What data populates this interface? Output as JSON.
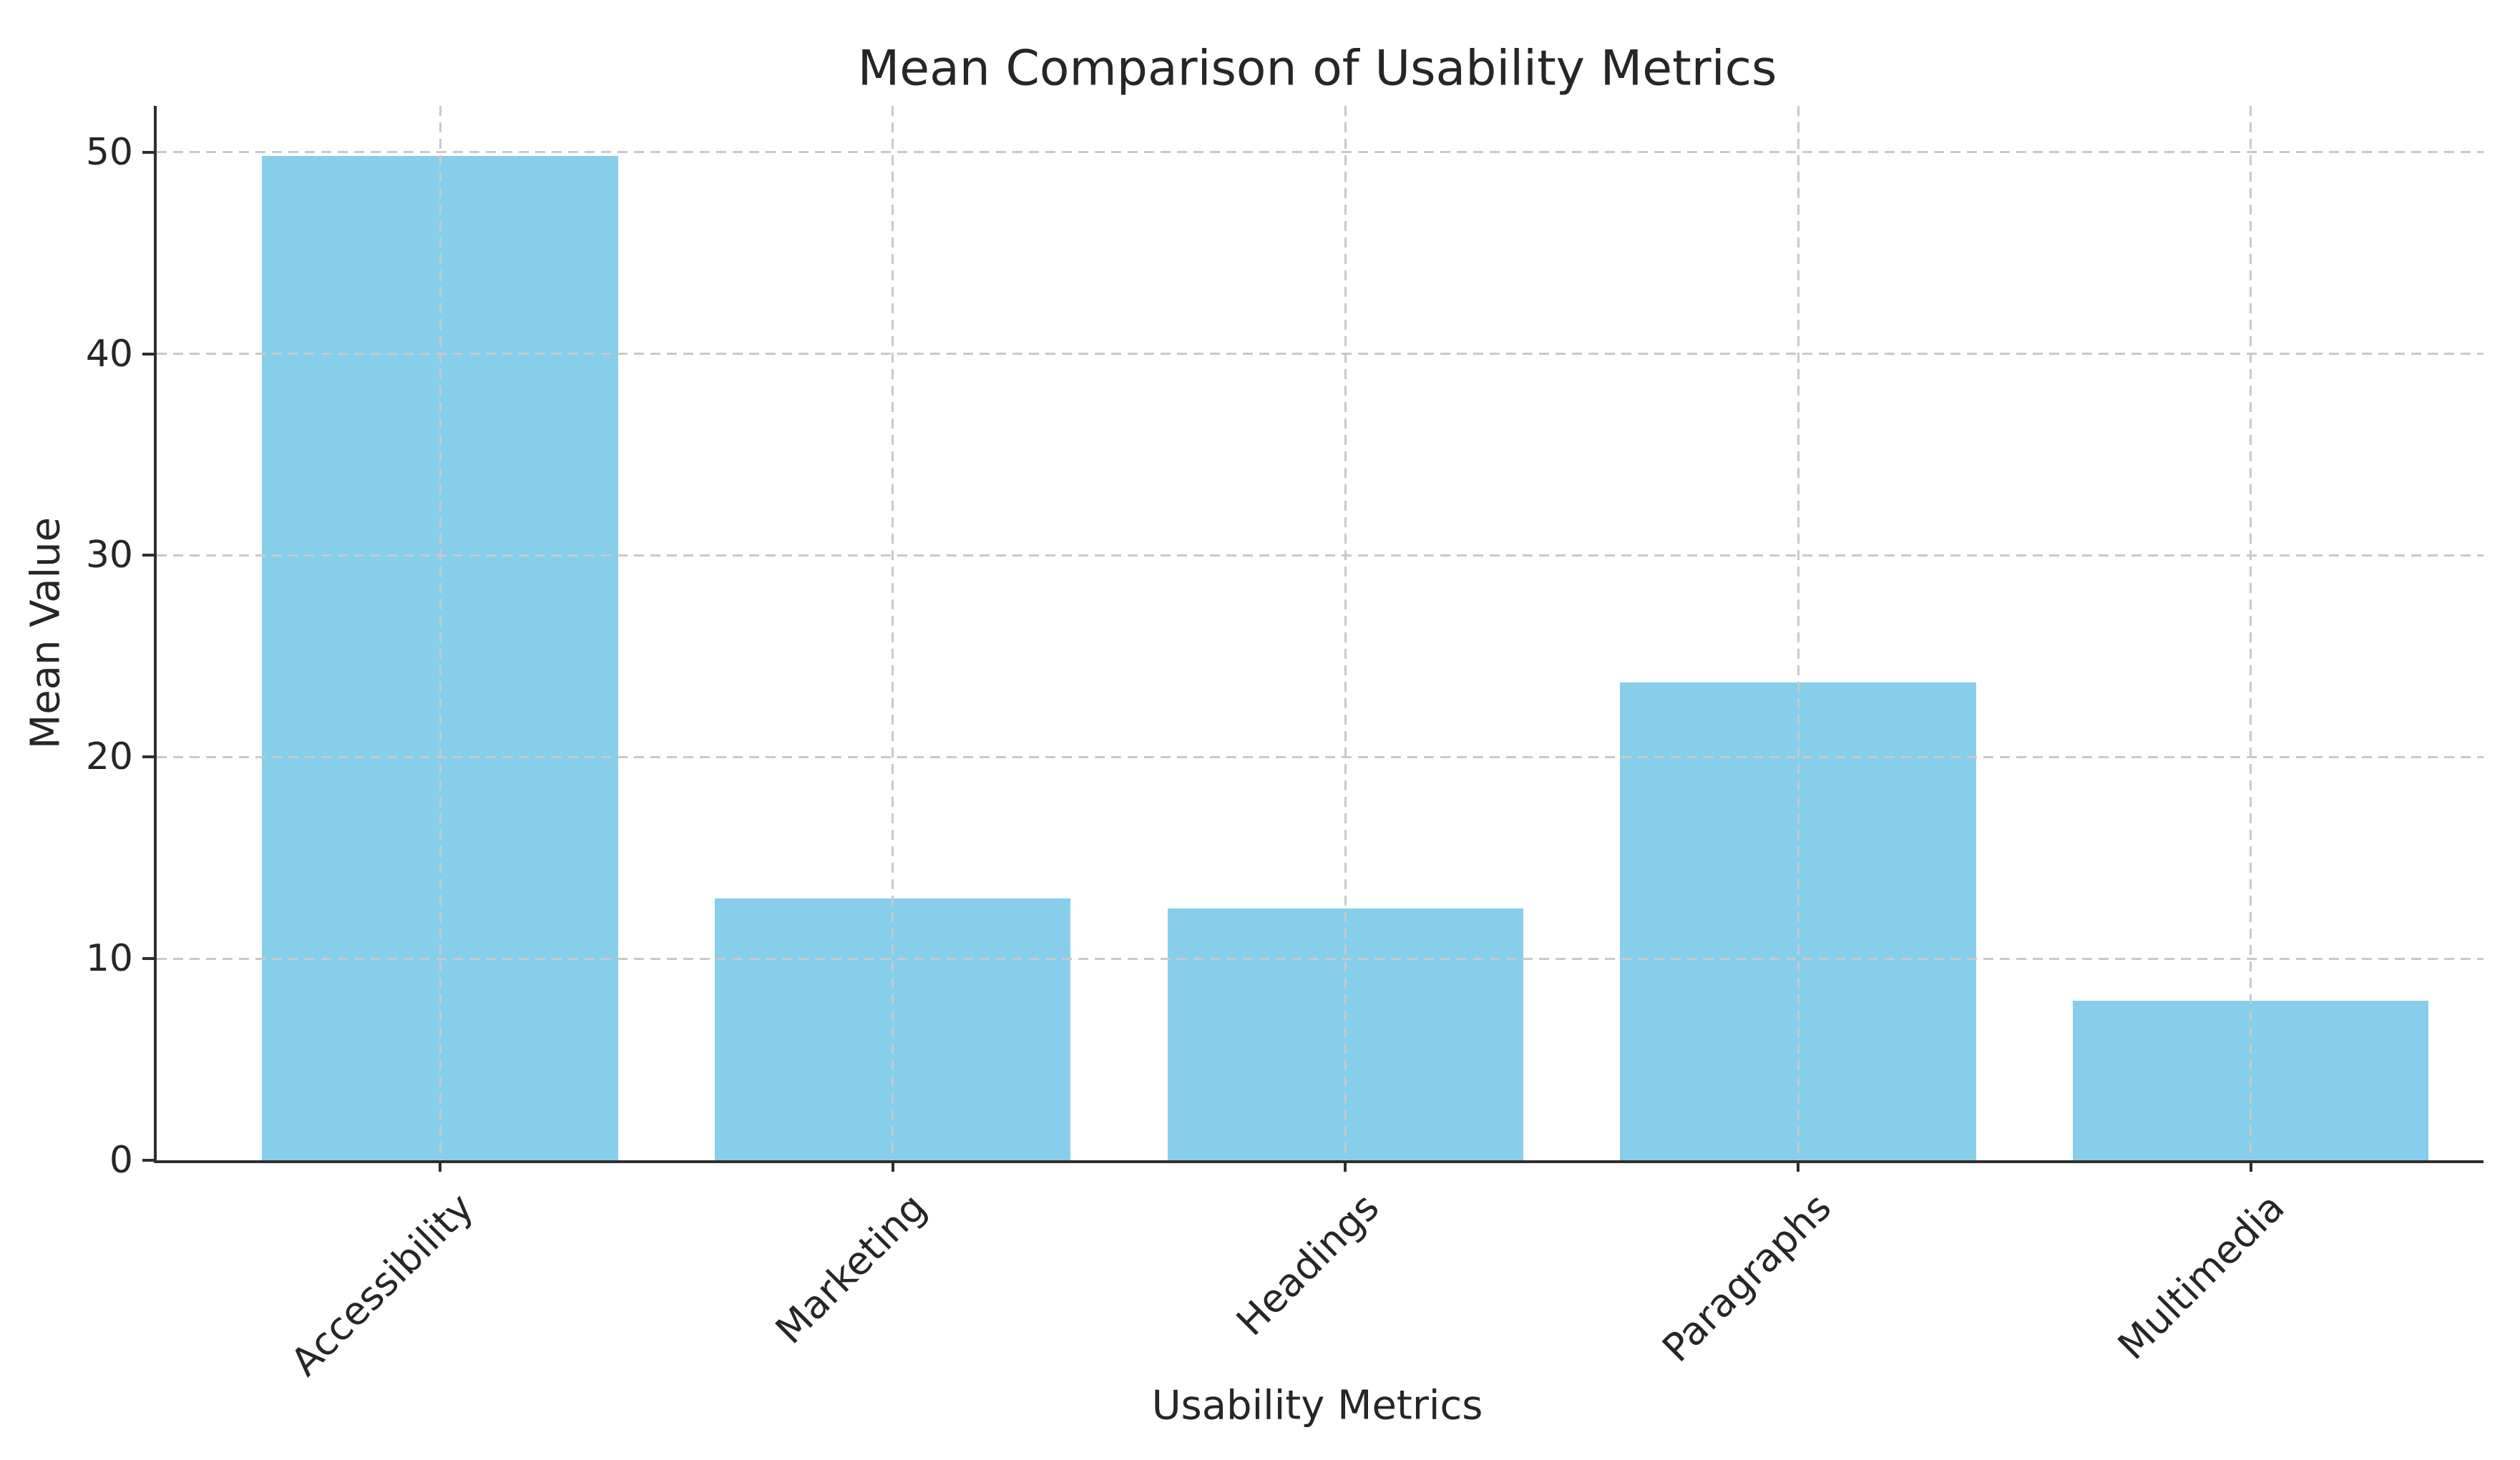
{
  "chart_data": {
    "type": "bar",
    "title": "Mean Comparison of Usability Metrics",
    "xlabel": "Usability Metrics",
    "ylabel": "Mean Value",
    "categories": [
      "Accessibility",
      "Marketing",
      "Headings",
      "Paragraphs",
      "Multimedia"
    ],
    "values": [
      49.8,
      13.0,
      12.5,
      23.7,
      7.9
    ],
    "yticks": [
      0,
      10,
      20,
      30,
      40,
      50
    ],
    "ylim": [
      0,
      52.3
    ],
    "legend_position": "none",
    "grid": "dashed gridlines on both axes, drawn above bars",
    "spines": "left and bottom only",
    "bar_color": "#87CEEB"
  },
  "colors": {
    "bar": "#87CEEB",
    "text": "#262626",
    "grid": "#c9c9c9",
    "spine": "#2e2e2e",
    "background": "#ffffff"
  }
}
